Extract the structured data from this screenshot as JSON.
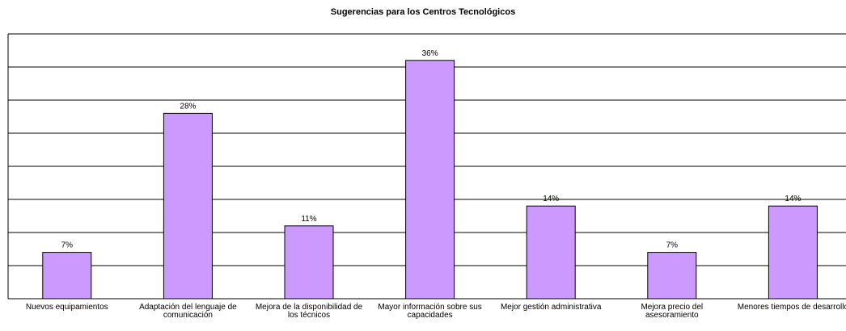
{
  "chart_data": {
    "type": "bar",
    "title": "Sugerencias para los Centros Tecnológicos",
    "categories": [
      "Nuevos equipamientos",
      "Adaptación del lenguaje de comunicación",
      "Mejora de la disponibilidad de los técnicos",
      "Mayor información sobre sus capacidades",
      "Mejor gestión administrativa",
      "Mejora precio del asesoramiento",
      "Menores tiempos de desarrollo"
    ],
    "values": [
      7,
      28,
      11,
      36,
      14,
      7,
      14
    ],
    "value_labels": [
      "7%",
      "28%",
      "11%",
      "36%",
      "14%",
      "7%",
      "14%"
    ],
    "color": "#cc99ff",
    "ylim": [
      0,
      40
    ],
    "yticks": [
      0,
      5,
      10,
      15,
      20,
      25,
      30,
      35,
      40
    ],
    "grid": true
  }
}
